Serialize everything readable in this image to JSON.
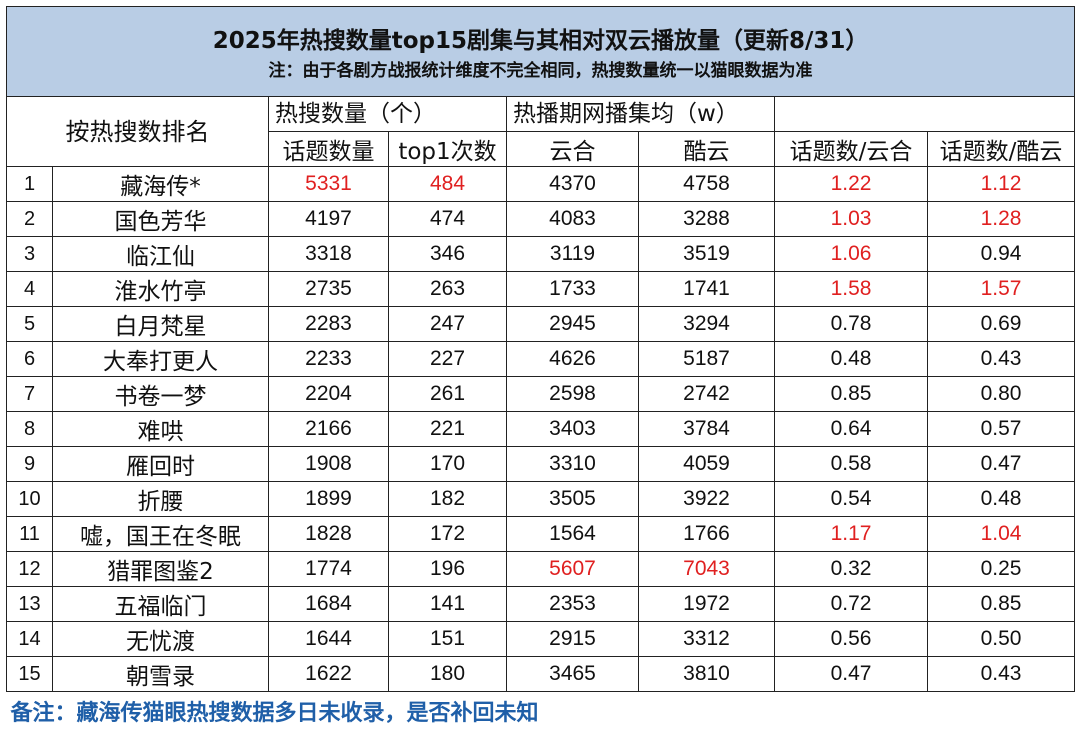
{
  "title": "2025年热搜数量top15剧集与其相对双云播放量（更新8/31）",
  "note": "注：由于各剧方战报统计维度不完全相同，热搜数量统一以猫眼数据为准",
  "headers": {
    "rank_by": "按热搜数排名",
    "hot_search": "热搜数量（个）",
    "hot_search_topics": "话题数量",
    "hot_search_top1": "top1次数",
    "avg_play": "热播期网播集均（w）",
    "yunhe": "云合",
    "kuyun": "酷云",
    "ratio_yunhe": "话题数/云合",
    "ratio_kuyun": "话题数/酷云"
  },
  "highlight_color": "#e02020",
  "rows": [
    {
      "rank": "1",
      "name": "藏海传*",
      "topics": "5331",
      "top1": "484",
      "yunhe": "4370",
      "kuyun": "4758",
      "r_yunhe": "1.22",
      "r_kuyun": "1.12"
    },
    {
      "rank": "2",
      "name": "国色芳华",
      "topics": "4197",
      "top1": "474",
      "yunhe": "4083",
      "kuyun": "3288",
      "r_yunhe": "1.03",
      "r_kuyun": "1.28"
    },
    {
      "rank": "3",
      "name": "临江仙",
      "topics": "3318",
      "top1": "346",
      "yunhe": "3119",
      "kuyun": "3519",
      "r_yunhe": "1.06",
      "r_kuyun": "0.94"
    },
    {
      "rank": "4",
      "name": "淮水竹亭",
      "topics": "2735",
      "top1": "263",
      "yunhe": "1733",
      "kuyun": "1741",
      "r_yunhe": "1.58",
      "r_kuyun": "1.57"
    },
    {
      "rank": "5",
      "name": "白月梵星",
      "topics": "2283",
      "top1": "247",
      "yunhe": "2945",
      "kuyun": "3294",
      "r_yunhe": "0.78",
      "r_kuyun": "0.69"
    },
    {
      "rank": "6",
      "name": "大奉打更人",
      "topics": "2233",
      "top1": "227",
      "yunhe": "4626",
      "kuyun": "5187",
      "r_yunhe": "0.48",
      "r_kuyun": "0.43"
    },
    {
      "rank": "7",
      "name": "书卷一梦",
      "topics": "2204",
      "top1": "261",
      "yunhe": "2598",
      "kuyun": "2742",
      "r_yunhe": "0.85",
      "r_kuyun": "0.80"
    },
    {
      "rank": "8",
      "name": "难哄",
      "topics": "2166",
      "top1": "221",
      "yunhe": "3403",
      "kuyun": "3784",
      "r_yunhe": "0.64",
      "r_kuyun": "0.57"
    },
    {
      "rank": "9",
      "name": "雁回时",
      "topics": "1908",
      "top1": "170",
      "yunhe": "3310",
      "kuyun": "4059",
      "r_yunhe": "0.58",
      "r_kuyun": "0.47"
    },
    {
      "rank": "10",
      "name": "折腰",
      "topics": "1899",
      "top1": "182",
      "yunhe": "3505",
      "kuyun": "3922",
      "r_yunhe": "0.54",
      "r_kuyun": "0.48"
    },
    {
      "rank": "11",
      "name": "嘘，国王在冬眠",
      "topics": "1828",
      "top1": "172",
      "yunhe": "1564",
      "kuyun": "1766",
      "r_yunhe": "1.17",
      "r_kuyun": "1.04"
    },
    {
      "rank": "12",
      "name": "猎罪图鉴2",
      "topics": "1774",
      "top1": "196",
      "yunhe": "5607",
      "kuyun": "7043",
      "r_yunhe": "0.32",
      "r_kuyun": "0.25"
    },
    {
      "rank": "13",
      "name": "五福临门",
      "topics": "1684",
      "top1": "141",
      "yunhe": "2353",
      "kuyun": "1972",
      "r_yunhe": "0.72",
      "r_kuyun": "0.85"
    },
    {
      "rank": "14",
      "name": "无忧渡",
      "topics": "1644",
      "top1": "151",
      "yunhe": "2915",
      "kuyun": "3312",
      "r_yunhe": "0.56",
      "r_kuyun": "0.50"
    },
    {
      "rank": "15",
      "name": "朝雪录",
      "topics": "1622",
      "top1": "180",
      "yunhe": "3465",
      "kuyun": "3810",
      "r_yunhe": "0.47",
      "r_kuyun": "0.43"
    }
  ],
  "red_cells": {
    "1": [
      "topics",
      "top1",
      "r_yunhe",
      "r_kuyun"
    ],
    "2": [
      "r_yunhe",
      "r_kuyun"
    ],
    "3": [
      "r_yunhe"
    ],
    "4": [
      "r_yunhe",
      "r_kuyun"
    ],
    "11": [
      "r_yunhe",
      "r_kuyun"
    ],
    "12": [
      "yunhe",
      "kuyun"
    ]
  },
  "footnote": "备注：藏海传猫眼热搜数据多日未收录，是否补回未知"
}
